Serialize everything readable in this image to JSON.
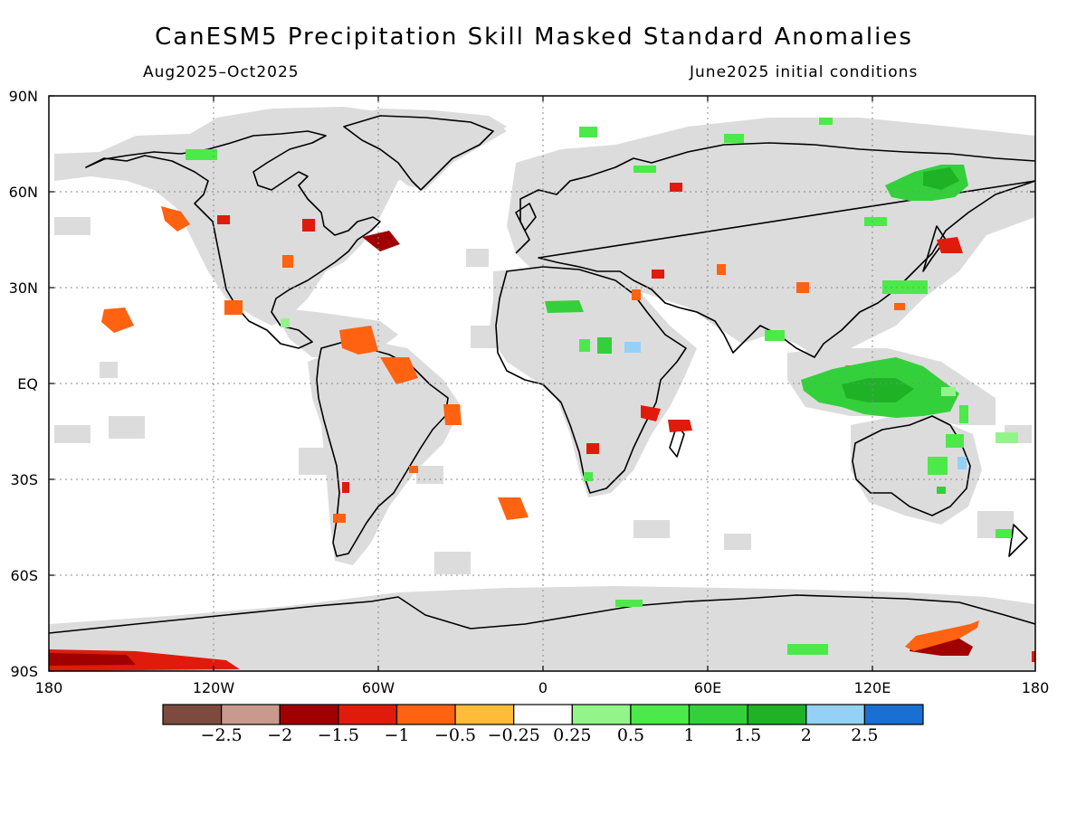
{
  "title": "CanESM5 Precipitation Skill Masked Standard Anomalies",
  "subtitle_left": "Aug2025–Oct2025",
  "subtitle_right": "June2025 initial conditions",
  "lat_labels": [
    "90N",
    "60N",
    "30N",
    "EQ",
    "30S",
    "60S",
    "90S"
  ],
  "lon_labels": [
    "180",
    "120W",
    "60W",
    "0",
    "60E",
    "120E",
    "180"
  ],
  "colorbar": {
    "colors": [
      "#7d4a3e",
      "#c89a8e",
      "#a00000",
      "#e01b0b",
      "#ff6210",
      "#ffbb3a",
      "#ffffff",
      "#93f589",
      "#4ce94a",
      "#33d03c",
      "#1fb227",
      "#95d0f5",
      "#1a6fd2"
    ],
    "labels": [
      "−2.5",
      "−2",
      "−1.5",
      "−1",
      "−0.5",
      "−0.25",
      "0.25",
      "0.5",
      "1",
      "1.5",
      "2",
      "2.5"
    ]
  },
  "colors": {
    "skill_mask": "#dcdcdc",
    "no_skill": "#ffffff",
    "coastline": "#000000"
  },
  "anomaly_regions": [
    {
      "name": "gulf-of-alaska",
      "level": "-1"
    },
    {
      "name": "hawaii",
      "level": "-1"
    },
    {
      "name": "mexico-pacific",
      "level": "-1"
    },
    {
      "name": "hudson-quebec",
      "level": "-1.5"
    },
    {
      "name": "newfoundland",
      "level": "-1.5"
    },
    {
      "name": "great-lakes",
      "level": "-1"
    },
    {
      "name": "caribbean",
      "level": "-1"
    },
    {
      "name": "guianas",
      "level": "-1"
    },
    {
      "name": "brazil-east",
      "level": "-1"
    },
    {
      "name": "south-atlantic-island",
      "level": "-1"
    },
    {
      "name": "southern-africa",
      "level": "-1.5"
    },
    {
      "name": "east-africa",
      "level": "-1.5"
    },
    {
      "name": "madagascar",
      "level": "-1.5"
    },
    {
      "name": "japan",
      "level": "-1.5"
    },
    {
      "name": "maritime-continent",
      "level": "1.5"
    },
    {
      "name": "siberia",
      "level": "1.5"
    },
    {
      "name": "sahel",
      "level": "1.5"
    },
    {
      "name": "australia-northeast",
      "level": "1"
    },
    {
      "name": "antarctica-ross",
      "level": "-2"
    },
    {
      "name": "antarctica-west",
      "level": "-1.5"
    }
  ]
}
